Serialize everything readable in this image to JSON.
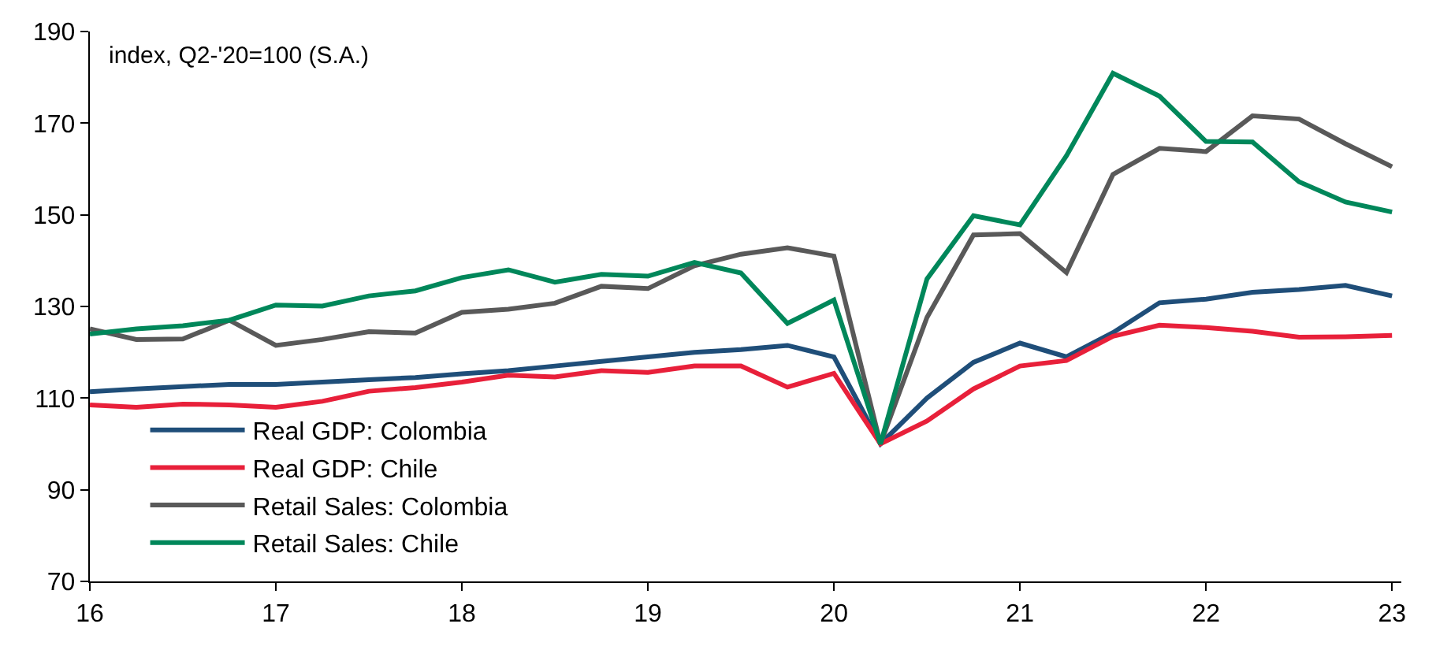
{
  "chart_data": {
    "type": "line",
    "x": [
      16,
      16.25,
      16.5,
      16.75,
      17,
      17.25,
      17.5,
      17.75,
      18,
      18.25,
      18.5,
      18.75,
      19,
      19.25,
      19.5,
      19.75,
      20,
      20.25,
      20.5,
      20.75,
      21,
      21.25,
      21.5,
      21.75,
      22,
      22.25,
      22.5,
      22.75,
      23
    ],
    "series": [
      {
        "name": "Real GDP: Colombia",
        "color": "#1f4e79",
        "values": [
          111.4,
          112,
          112.5,
          113,
          113,
          113.5,
          114,
          114.5,
          115.3,
          116,
          117,
          118,
          119,
          120,
          120.6,
          121.5,
          119,
          100,
          110,
          117.8,
          122,
          119,
          124.3,
          130.8,
          131.6,
          133.1,
          133.7,
          134.6,
          132.3
        ]
      },
      {
        "name": "Real GDP: Chile",
        "color": "#e8203a",
        "values": [
          108.5,
          108,
          108.7,
          108.5,
          108,
          109.3,
          111.5,
          112.3,
          113.5,
          115,
          114.6,
          116,
          115.6,
          117,
          117,
          112.4,
          115.4,
          100,
          105,
          112,
          117,
          118.2,
          123.5,
          125.9,
          125.4,
          124.6,
          123.3,
          123.4,
          123.7
        ]
      },
      {
        "name": "Retail Sales: Colombia",
        "color": "#595959",
        "values": [
          125.1,
          122.8,
          122.9,
          127,
          121.5,
          122.8,
          124.5,
          124.2,
          128.7,
          129.4,
          130.7,
          134.4,
          133.9,
          138.9,
          141.4,
          142.8,
          141,
          100,
          127.6,
          145.6,
          145.9,
          137.4,
          158.8,
          164.5,
          163.8,
          171.6,
          170.9,
          165.5,
          160.5
        ]
      },
      {
        "name": "Retail Sales: Chile",
        "color": "#00875a",
        "values": [
          124,
          125.1,
          125.8,
          127,
          130.3,
          130.1,
          132.3,
          133.4,
          136.3,
          138,
          135.3,
          137,
          136.6,
          139.6,
          137.3,
          126.3,
          131.4,
          100,
          136,
          149.8,
          147.8,
          162.9,
          180.9,
          175.9,
          166,
          165.9,
          157.2,
          152.8,
          150.6
        ]
      }
    ],
    "xlim": [
      16,
      23.05
    ],
    "xticks": [
      16,
      17,
      18,
      19,
      20,
      21,
      22,
      23
    ],
    "ylim": [
      70,
      190
    ],
    "yticks": [
      70,
      90,
      110,
      130,
      150,
      170,
      190
    ],
    "annotations": [
      "index, Q2-'20=100 (S.A.)"
    ],
    "legend": "bottom left",
    "marker": "none",
    "line_style": "solid"
  }
}
